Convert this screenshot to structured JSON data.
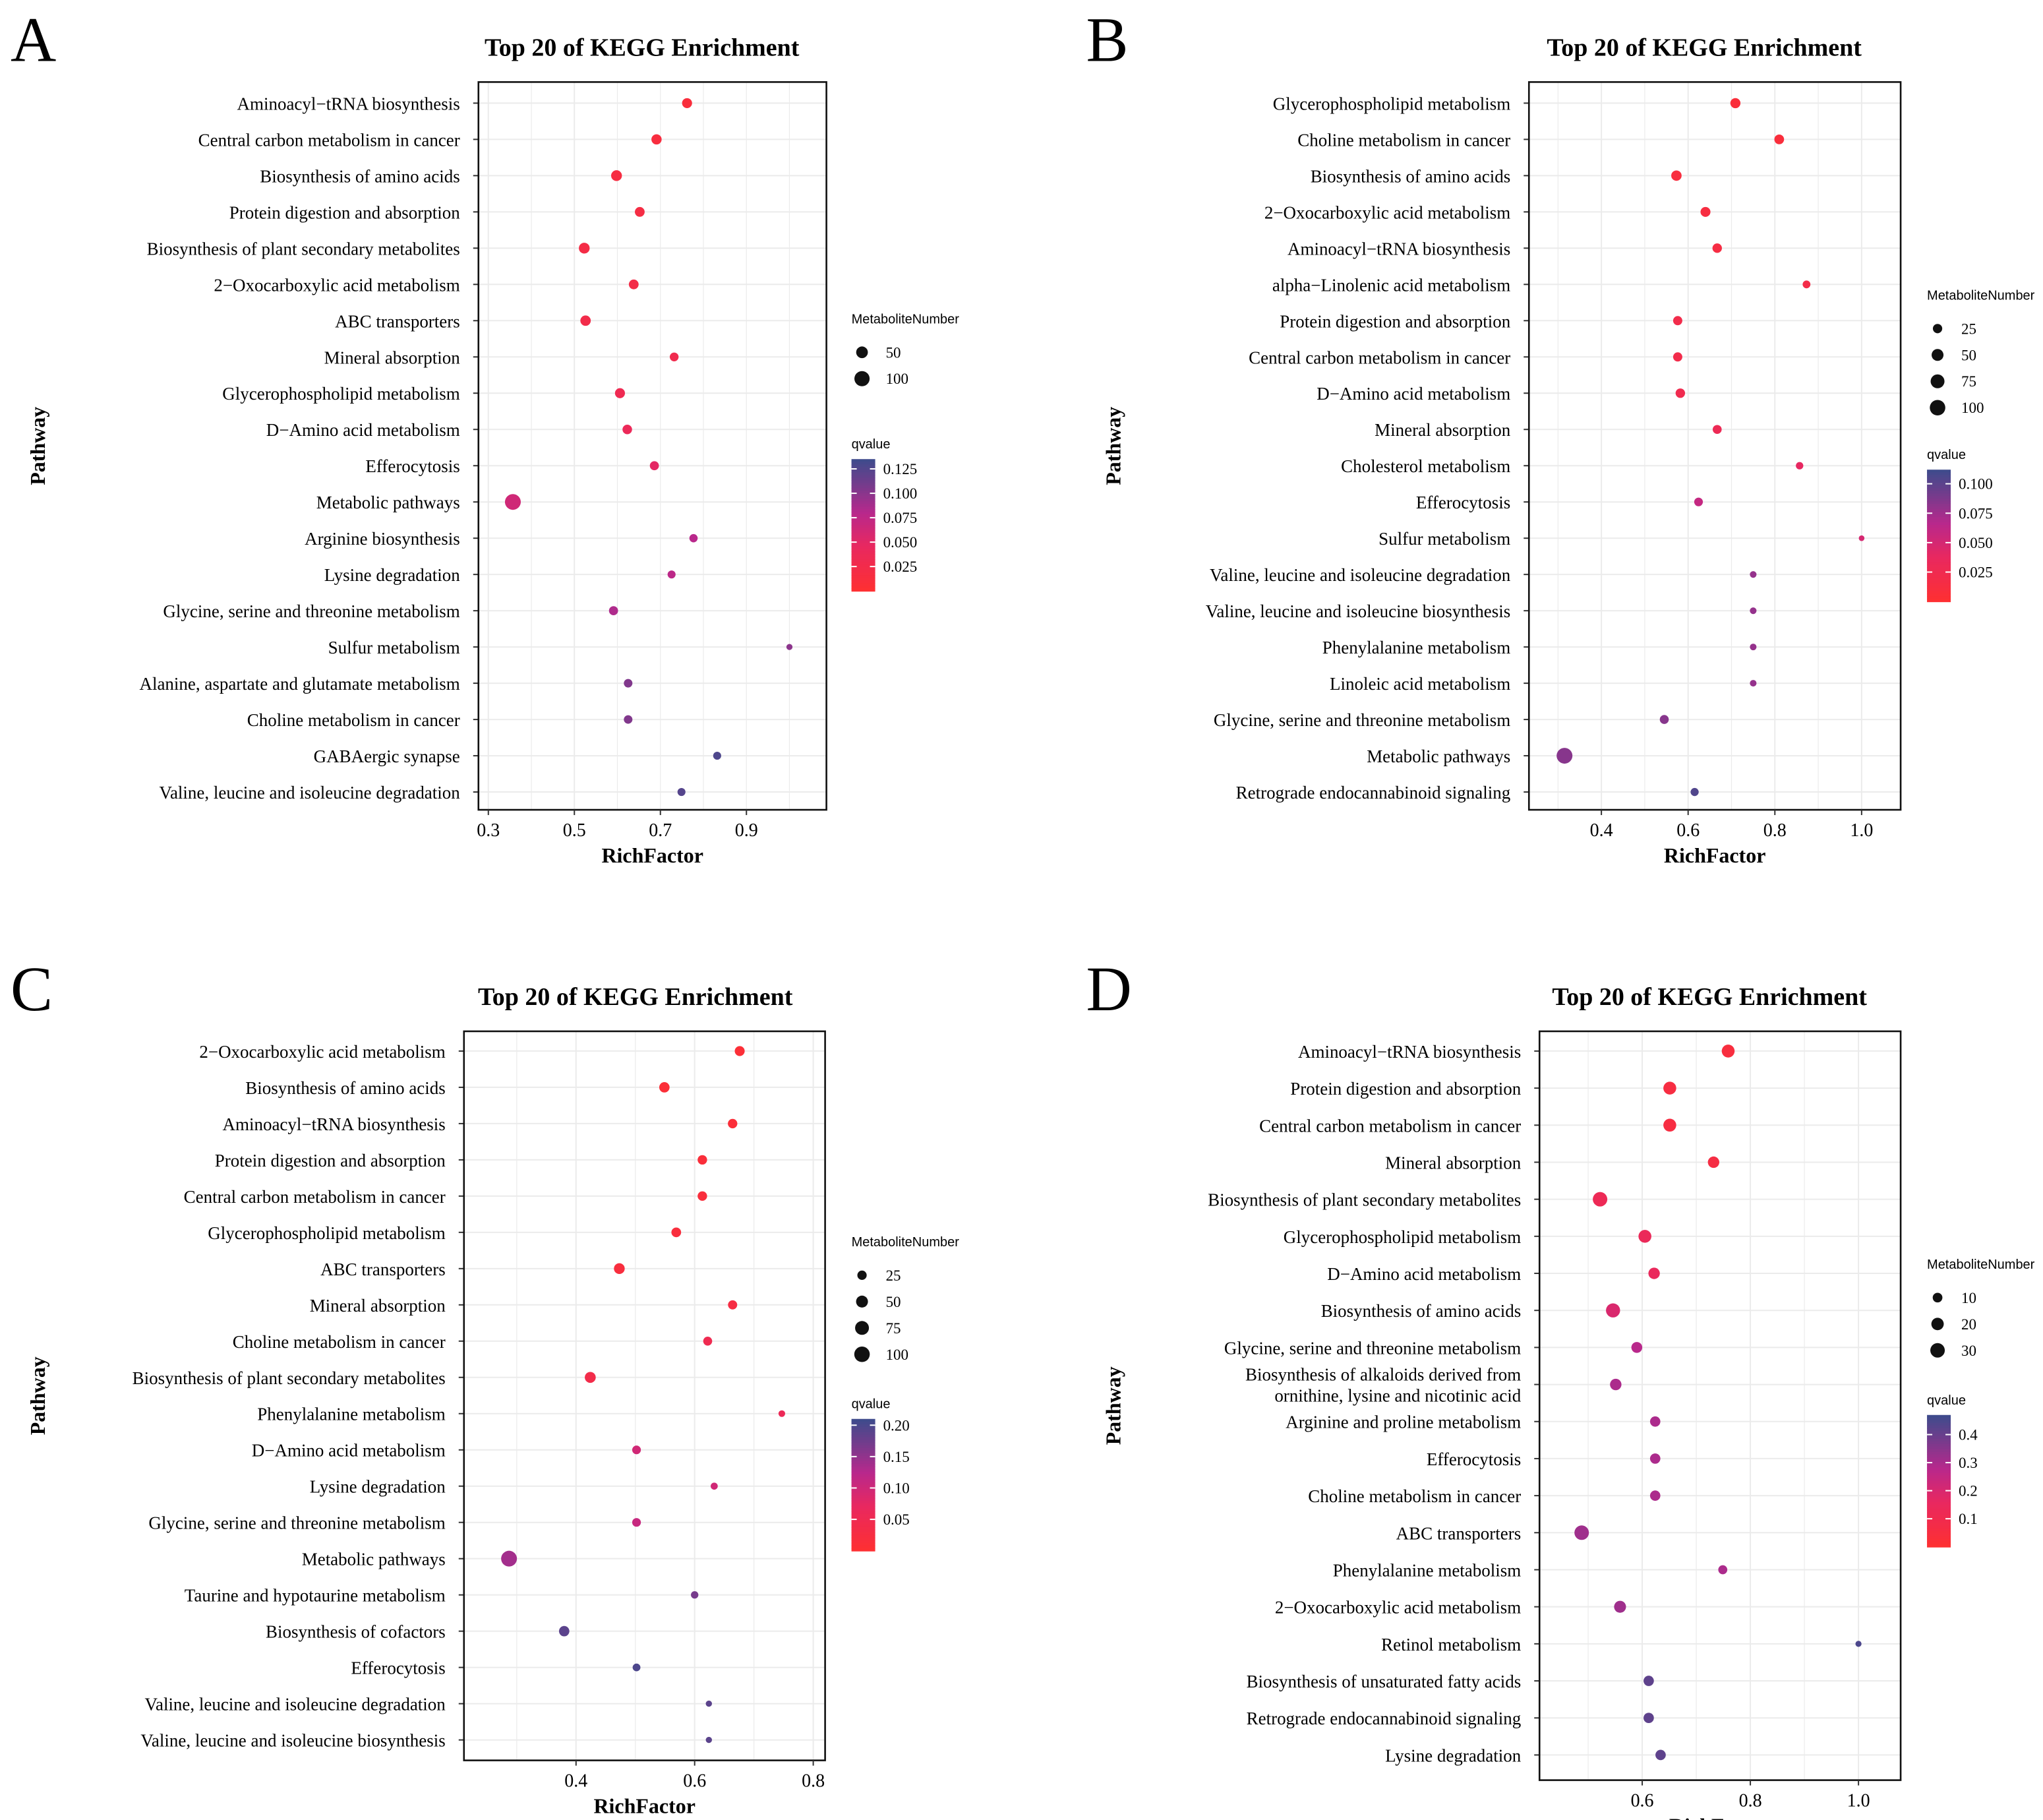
{
  "chart_data": [
    {
      "panel": "A",
      "type": "scatter",
      "title": "Top 20 of KEGG Enrichment",
      "xlabel": "RichFactor",
      "ylabel": "Pathway",
      "xlim": [
        0.277,
        1.086
      ],
      "xticks": [
        "0.3",
        "0.5",
        "0.7",
        "0.9"
      ],
      "xtick_values": [
        0.3,
        0.5,
        0.7,
        0.9
      ],
      "size_legend_title": "MetaboliteNumber",
      "size_legend": [
        50,
        100
      ],
      "color_legend_title": "qvalue",
      "color_range": [
        0.0,
        0.135
      ],
      "color_ticks": [
        "0.025",
        "0.050",
        "0.075",
        "0.100",
        "0.125"
      ],
      "color_tick_values": [
        0.025,
        0.05,
        0.075,
        0.1,
        0.125
      ],
      "pathways": [
        "Aminoacyl−tRNA biosynthesis",
        "Central carbon metabolism in cancer",
        "Biosynthesis of amino acids",
        "Protein digestion and absorption",
        "Biosynthesis of plant secondary metabolites",
        "2−Oxocarboxylic acid metabolism",
        "ABC transporters",
        "Mineral absorption",
        "Glycerophospholipid metabolism",
        "D−Amino acid metabolism",
        "Efferocytosis",
        "Metabolic pathways",
        "Arginine biosynthesis",
        "Lysine degradation",
        "Glycine, serine and threonine metabolism",
        "Sulfur metabolism",
        "Alanine, aspartate and glutamate metabolism",
        "Choline metabolism in cancer",
        "GABAergic synapse",
        "Valine, leucine and isoleucine degradation"
      ],
      "richfactor": [
        0.762,
        0.691,
        0.598,
        0.652,
        0.523,
        0.638,
        0.526,
        0.732,
        0.606,
        0.623,
        0.686,
        0.357,
        0.777,
        0.726,
        0.591,
        1.0,
        0.625,
        0.625,
        0.832,
        0.749
      ],
      "metabolite_number": [
        32,
        34,
        40,
        30,
        40,
        30,
        36,
        22,
        32,
        28,
        24,
        110,
        18,
        16,
        24,
        6,
        20,
        20,
        16,
        16
      ],
      "qvalue": [
        0.012,
        0.015,
        0.018,
        0.02,
        0.022,
        0.024,
        0.026,
        0.03,
        0.033,
        0.04,
        0.05,
        0.065,
        0.08,
        0.078,
        0.085,
        0.1,
        0.105,
        0.105,
        0.128,
        0.125
      ]
    },
    {
      "panel": "B",
      "type": "scatter",
      "title": "Top 20 of KEGG Enrichment",
      "xlabel": "RichFactor",
      "ylabel": "Pathway",
      "xlim": [
        0.233,
        1.09
      ],
      "xticks": [
        "0.4",
        "0.6",
        "0.8",
        "1.0"
      ],
      "xtick_values": [
        0.4,
        0.6,
        0.8,
        1.0
      ],
      "size_legend_title": "MetaboliteNumber",
      "size_legend": [
        25,
        50,
        75,
        100
      ],
      "color_legend_title": "qvalue",
      "color_range": [
        0.0,
        0.112
      ],
      "color_ticks": [
        "0.025",
        "0.050",
        "0.075",
        "0.100"
      ],
      "color_tick_values": [
        0.025,
        0.05,
        0.075,
        0.1
      ],
      "pathways": [
        "Glycerophospholipid metabolism",
        "Choline metabolism in cancer",
        "Biosynthesis of amino acids",
        "2−Oxocarboxylic acid metabolism",
        "Aminoacyl−tRNA biosynthesis",
        "alpha−Linolenic acid metabolism",
        "Protein digestion and absorption",
        "Central carbon metabolism in cancer",
        "D−Amino acid metabolism",
        "Mineral absorption",
        "Cholesterol metabolism",
        "Efferocytosis",
        "Sulfur metabolism",
        "Valine, leucine and isoleucine degradation",
        "Valine, leucine and isoleucine biosynthesis",
        "Phenylalanine metabolism",
        "Linoleic acid metabolism",
        "Glycine, serine and threonine metabolism",
        "Metabolic pathways",
        "Retrograde endocannabinoid signaling"
      ],
      "richfactor": [
        0.709,
        0.81,
        0.573,
        0.64,
        0.667,
        0.873,
        0.576,
        0.576,
        0.582,
        0.667,
        0.857,
        0.624,
        1.0,
        0.75,
        0.75,
        0.75,
        0.75,
        0.545,
        0.315,
        0.615
      ],
      "metabolite_number": [
        32,
        28,
        34,
        30,
        26,
        14,
        24,
        24,
        26,
        22,
        12,
        20,
        4,
        8,
        8,
        8,
        8,
        22,
        105,
        16
      ],
      "qvalue": [
        0.008,
        0.01,
        0.012,
        0.014,
        0.016,
        0.02,
        0.022,
        0.022,
        0.025,
        0.03,
        0.04,
        0.06,
        0.05,
        0.08,
        0.08,
        0.08,
        0.08,
        0.085,
        0.085,
        0.105
      ]
    },
    {
      "panel": "C",
      "type": "scatter",
      "title": "Top 20 of KEGG Enrichment",
      "xlabel": "RichFactor",
      "ylabel": "Pathway",
      "xlim": [
        0.211,
        0.82
      ],
      "xticks": [
        "0.4",
        "0.6",
        "0.8"
      ],
      "xtick_values": [
        0.4,
        0.6,
        0.8
      ],
      "size_legend_title": "MetaboliteNumber",
      "size_legend": [
        25,
        50,
        75,
        100
      ],
      "color_legend_title": "qvalue",
      "color_range": [
        0.0,
        0.21
      ],
      "color_ticks": [
        "0.05",
        "0.10",
        "0.15",
        "0.20"
      ],
      "color_tick_values": [
        0.05,
        0.1,
        0.15,
        0.2
      ],
      "pathways": [
        "2−Oxocarboxylic acid metabolism",
        "Biosynthesis of amino acids",
        "Aminoacyl−tRNA biosynthesis",
        "Protein digestion and absorption",
        "Central carbon metabolism in cancer",
        "Glycerophospholipid metabolism",
        "ABC transporters",
        "Mineral absorption",
        "Choline metabolism in cancer",
        "Biosynthesis of plant secondary metabolites",
        "Phenylalanine metabolism",
        "D−Amino acid metabolism",
        "Lysine degradation",
        "Glycine, serine and threonine metabolism",
        "Metabolic pathways",
        "Taurine and hypotaurine metabolism",
        "Biosynthesis of cofactors",
        "Efferocytosis",
        "Valine, leucine and isoleucine degradation",
        "Valine, leucine and isoleucine biosynthesis"
      ],
      "richfactor": [
        0.676,
        0.549,
        0.664,
        0.613,
        0.613,
        0.569,
        0.473,
        0.664,
        0.622,
        0.424,
        0.747,
        0.502,
        0.633,
        0.502,
        0.287,
        0.6,
        0.38,
        0.502,
        0.624,
        0.624
      ],
      "metabolite_number": [
        30,
        34,
        26,
        26,
        26,
        28,
        38,
        24,
        22,
        40,
        8,
        20,
        10,
        20,
        105,
        12,
        34,
        14,
        6,
        6
      ],
      "qvalue": [
        0.01,
        0.012,
        0.014,
        0.016,
        0.018,
        0.02,
        0.022,
        0.03,
        0.05,
        0.04,
        0.06,
        0.1,
        0.1,
        0.11,
        0.14,
        0.17,
        0.19,
        0.2,
        0.19,
        0.19
      ]
    },
    {
      "panel": "D",
      "type": "scatter",
      "title": "Top 20 of KEGG Enrichment",
      "xlabel": "RichFactor",
      "ylabel": "Pathway",
      "xlim": [
        0.41,
        1.078
      ],
      "xticks": [
        "0.6",
        "0.8",
        "1.0"
      ],
      "xtick_values": [
        0.6,
        0.8,
        1.0
      ],
      "size_legend_title": "MetaboliteNumber",
      "size_legend": [
        10,
        20,
        30
      ],
      "color_legend_title": "qvalue",
      "color_range": [
        0.0,
        0.47
      ],
      "color_ticks": [
        "0.1",
        "0.2",
        "0.3",
        "0.4"
      ],
      "color_tick_values": [
        0.1,
        0.2,
        0.3,
        0.4
      ],
      "pathways": [
        "Aminoacyl−tRNA biosynthesis",
        "Protein digestion and absorption",
        "Central carbon metabolism in cancer",
        "Mineral absorption",
        "Biosynthesis of plant secondary metabolites",
        "Glycerophospholipid metabolism",
        "D−Amino acid metabolism",
        "Biosynthesis of amino acids",
        "Glycine, serine and threonine metabolism",
        "Biosynthesis of alkaloids derived from\nornithine, lysine and nicotinic acid",
        "Arginine and proline metabolism",
        "Efferocytosis",
        "Choline metabolism in cancer",
        "ABC transporters",
        "Phenylalanine metabolism",
        "2−Oxocarboxylic acid metabolism",
        "Retinol metabolism",
        "Biosynthesis of unsaturated fatty acids",
        "Retrograde endocannabinoid signaling",
        "Lysine degradation"
      ],
      "richfactor": [
        0.759,
        0.651,
        0.651,
        0.732,
        0.522,
        0.605,
        0.622,
        0.546,
        0.59,
        0.551,
        0.624,
        0.624,
        0.624,
        0.488,
        0.749,
        0.559,
        1.0,
        0.612,
        0.612,
        0.634
      ],
      "metabolite_number": [
        22,
        22,
        22,
        16,
        30,
        22,
        16,
        28,
        14,
        16,
        12,
        12,
        12,
        30,
        8,
        18,
        2,
        12,
        12,
        12
      ],
      "qvalue": [
        0.05,
        0.06,
        0.06,
        0.07,
        0.13,
        0.14,
        0.15,
        0.2,
        0.28,
        0.3,
        0.3,
        0.3,
        0.3,
        0.32,
        0.3,
        0.32,
        0.45,
        0.42,
        0.42,
        0.42
      ]
    }
  ]
}
